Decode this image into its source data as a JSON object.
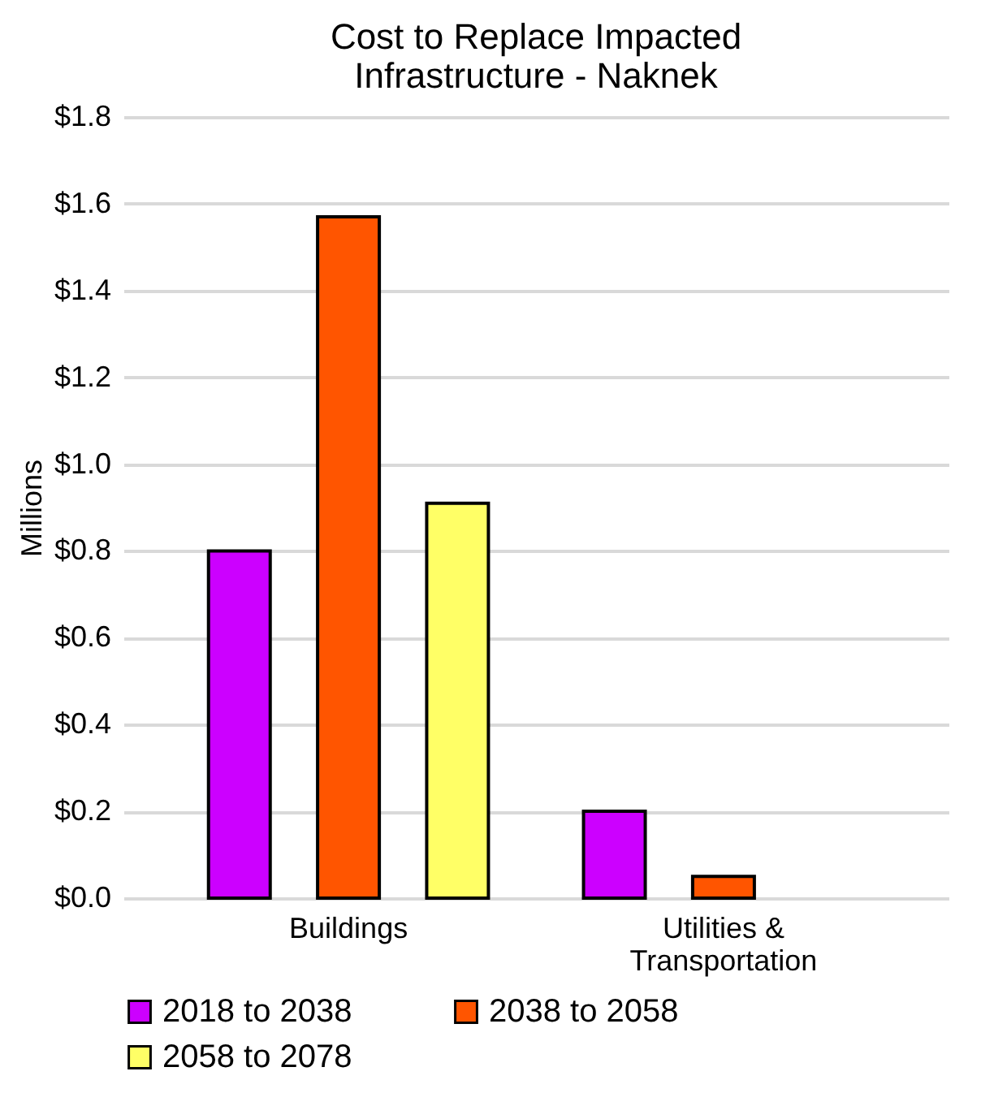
{
  "chart_data": {
    "type": "bar",
    "title": [
      "Cost to Replace Impacted",
      "Infrastructure - Naknek"
    ],
    "ylabel": "Millions",
    "categories": [
      [
        "Buildings"
      ],
      [
        "Utilities &",
        "Transportation"
      ]
    ],
    "series": [
      {
        "name": "2018 to 2038",
        "color": "#cc00ff",
        "values": [
          0.8,
          0.2
        ]
      },
      {
        "name": "2038 to 2058",
        "color": "#ff5500",
        "values": [
          1.57,
          0.05
        ]
      },
      {
        "name": "2058 to 2078",
        "color": "#ffff66",
        "values": [
          0.91,
          null
        ]
      }
    ],
    "ylim": [
      0,
      1.8
    ],
    "yticks": [
      {
        "value": 0,
        "label": "$0.0"
      },
      {
        "value": 0.2,
        "label": "$0.2"
      },
      {
        "value": 0.4,
        "label": "$0.4"
      },
      {
        "value": 0.6,
        "label": "$0.6"
      },
      {
        "value": 0.8,
        "label": "$0.8"
      },
      {
        "value": 1.0,
        "label": "$1.0"
      },
      {
        "value": 1.2,
        "label": "$1.2"
      },
      {
        "value": 1.4,
        "label": "$1.4"
      },
      {
        "value": 1.6,
        "label": "$1.6"
      },
      {
        "value": 1.8,
        "label": "$1.8"
      }
    ],
    "grid": "y",
    "legend": "bottom"
  }
}
